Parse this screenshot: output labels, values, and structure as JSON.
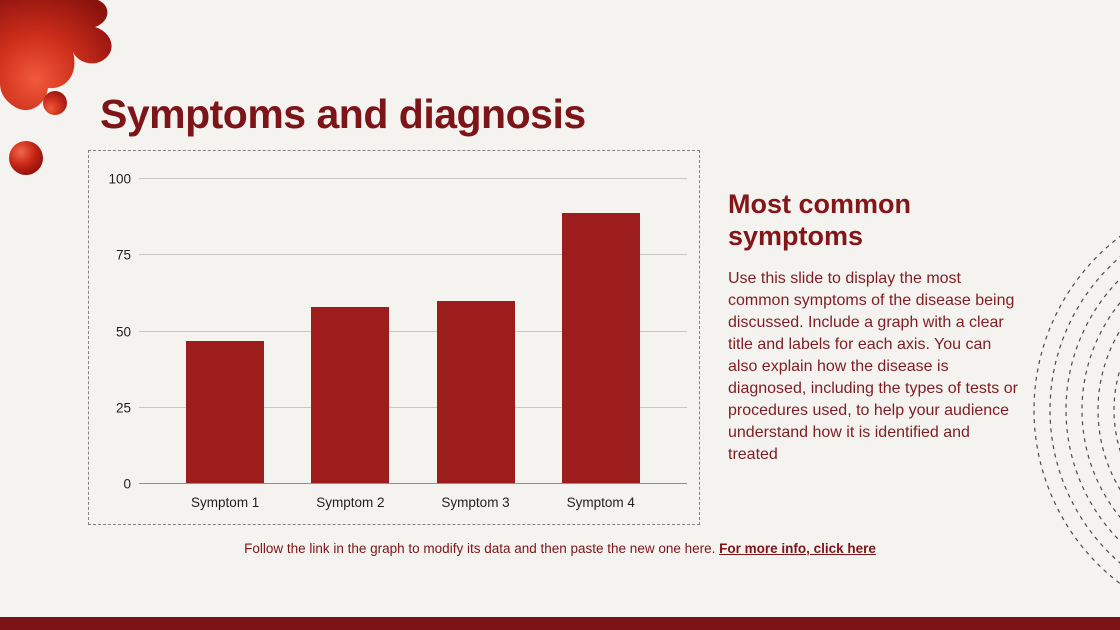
{
  "slide": {
    "title": "Symptoms and diagnosis"
  },
  "right_panel": {
    "heading": "Most common symptoms",
    "body": "Use this slide to display the most common symptoms of the disease being discussed. Include a graph with a clear title and labels for each axis. You can also explain how the disease is diagnosed, including the types of tests or procedures used, to help your audience understand how it is identified and treated"
  },
  "caption": {
    "text": "Follow the link in the graph to modify its data and then paste the new one here. ",
    "link_label": "For more info, click here"
  },
  "chart_data": {
    "type": "bar",
    "categories": [
      "Symptom 1",
      "Symptom 2",
      "Symptom 3",
      "Symptom 4"
    ],
    "values": [
      47,
      58,
      60,
      89
    ],
    "yticks": [
      0,
      25,
      50,
      75,
      100
    ],
    "ylim": [
      0,
      100
    ],
    "title": "",
    "xlabel": "",
    "ylabel": "",
    "grid": true,
    "legend_position": "none",
    "bar_color": "#9d1c1c"
  },
  "colors": {
    "background": "#f5f3f0",
    "accent_dark_red": "#7d1417",
    "bar_red": "#9d1c1c",
    "footer_bar": "#7c1316",
    "arc_gray": "#4c4c4c"
  }
}
